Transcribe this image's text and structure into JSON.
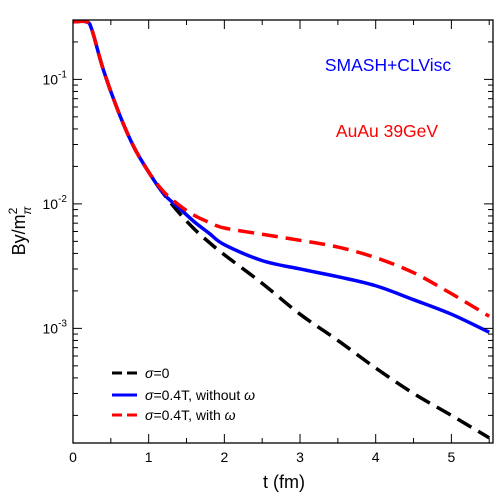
{
  "chart_data": {
    "type": "line",
    "title": "",
    "xlabel": "t (fm)",
    "ylabel": "By/m",
    "ylabel_sup": "2",
    "ylabel_sub": "π",
    "xlim": [
      0,
      5.55
    ],
    "ylim": [
      0.00012,
      0.3
    ],
    "yscale": "log",
    "grid": false,
    "legend_position": "bottom-left",
    "x_ticks": [
      0,
      1,
      2,
      3,
      4,
      5
    ],
    "x_tick_labels": [
      "0",
      "1",
      "2",
      "3",
      "4",
      "5"
    ],
    "y_ticks": [
      0.001,
      0.01,
      0.1
    ],
    "y_tick_labels": [
      {
        "base": "10",
        "exp": "-3"
      },
      {
        "base": "10",
        "exp": "-2"
      },
      {
        "base": "10",
        "exp": "-1"
      }
    ],
    "annotations": [
      {
        "text": "SMASH+CLVisc",
        "color": "#0000ff"
      },
      {
        "text": "AuAu 39GeV",
        "color": "#ff0000"
      }
    ],
    "series": [
      {
        "name_prefix": "σ",
        "name_suffix": "=0",
        "name_italic": "",
        "color": "#000000",
        "dash": "dashed",
        "x": [
          0.0,
          0.18,
          0.25,
          0.4,
          0.6,
          0.8,
          1.0,
          1.2,
          1.4,
          1.6,
          1.8,
          2.0,
          2.5,
          3.0,
          3.5,
          4.0,
          4.5,
          5.0,
          5.5
        ],
        "y": [
          0.29,
          0.29,
          0.25,
          0.12,
          0.055,
          0.029,
          0.018,
          0.012,
          0.0085,
          0.0063,
          0.0049,
          0.0039,
          0.0023,
          0.0013,
          0.0008,
          0.00048,
          0.0003,
          0.0002,
          0.000132
        ]
      },
      {
        "name_prefix": "σ",
        "name_suffix": "=0.4T, without ",
        "name_italic": "ω",
        "color": "#0000ff",
        "dash": "solid",
        "x": [
          0.0,
          0.18,
          0.25,
          0.4,
          0.6,
          0.8,
          1.0,
          1.2,
          1.4,
          1.6,
          1.8,
          2.0,
          2.5,
          3.0,
          3.5,
          4.0,
          4.5,
          5.0,
          5.5
        ],
        "y": [
          0.29,
          0.29,
          0.25,
          0.12,
          0.055,
          0.029,
          0.018,
          0.012,
          0.0093,
          0.0072,
          0.0058,
          0.0047,
          0.0035,
          0.003,
          0.0026,
          0.0022,
          0.0017,
          0.0013,
          0.00093
        ]
      },
      {
        "name_prefix": "σ",
        "name_suffix": "=0.4T, with ",
        "name_italic": "ω",
        "color": "#ff0000",
        "dash": "dashed",
        "x": [
          0.0,
          0.18,
          0.25,
          0.4,
          0.6,
          0.8,
          1.0,
          1.2,
          1.4,
          1.6,
          1.8,
          2.0,
          2.5,
          3.0,
          3.5,
          4.0,
          4.5,
          5.0,
          5.5
        ],
        "y": [
          0.29,
          0.29,
          0.25,
          0.12,
          0.055,
          0.029,
          0.018,
          0.0125,
          0.0098,
          0.0081,
          0.0071,
          0.0064,
          0.0057,
          0.0051,
          0.0045,
          0.0037,
          0.0028,
          0.0019,
          0.00125
        ]
      }
    ]
  }
}
